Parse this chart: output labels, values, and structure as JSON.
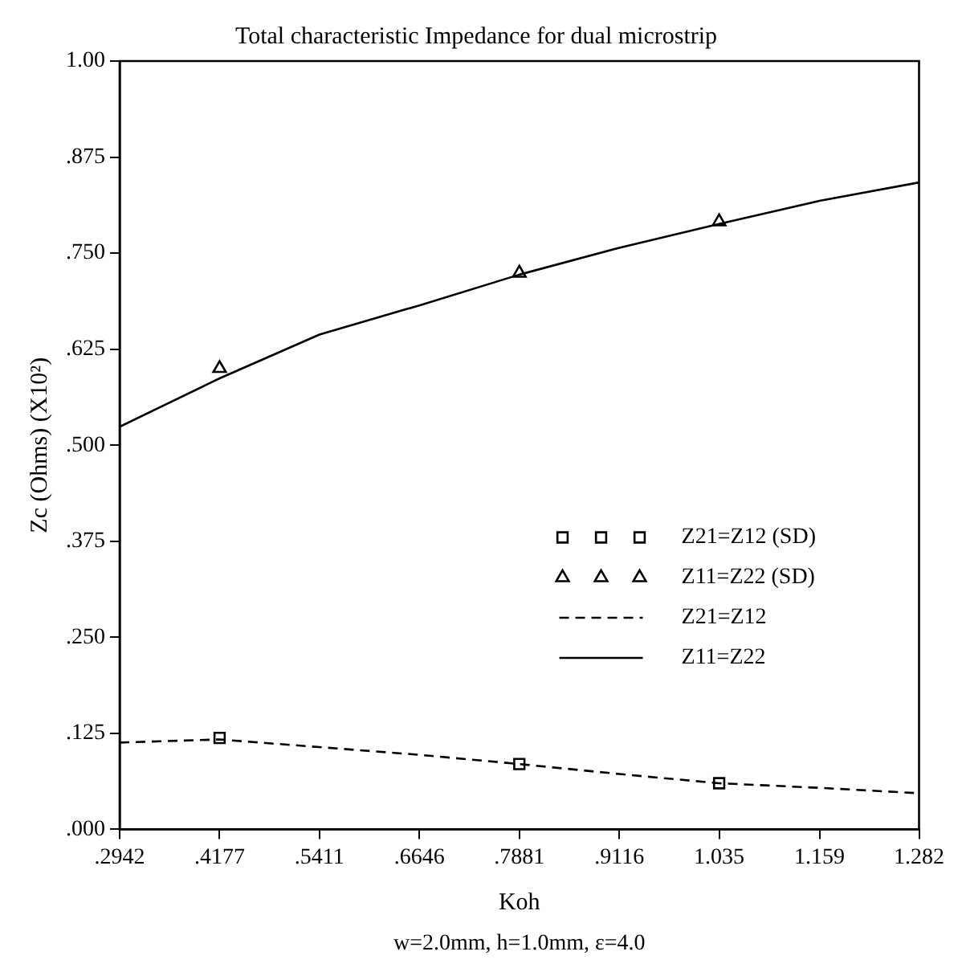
{
  "chart_data": {
    "type": "line",
    "title": "Total characteristic Impedance for dual microstrip",
    "xlabel": "Koh",
    "ylabel": "Zc (Ohms) (X10²)",
    "annotations": [
      "w=2.0mm, h=1.0mm, ε=4.0"
    ],
    "xlim": [
      0.2942,
      1.282
    ],
    "xticks": [
      {
        "value": 0.2942,
        "label": ".2942"
      },
      {
        "value": 0.4177,
        "label": ".4177"
      },
      {
        "value": 0.5411,
        "label": ".5411"
      },
      {
        "value": 0.6646,
        "label": ".6646"
      },
      {
        "value": 0.7881,
        "label": ".7881"
      },
      {
        "value": 0.9116,
        "label": ".9116"
      },
      {
        "value": 1.035,
        "label": "1.035"
      },
      {
        "value": 1.159,
        "label": "1.159"
      },
      {
        "value": 1.282,
        "label": "1.282"
      }
    ],
    "ylim": [
      0,
      1
    ],
    "yticks": [
      {
        "value": 0,
        "label": ".000"
      },
      {
        "value": 0.125,
        "label": ".125"
      },
      {
        "value": 0.25,
        "label": ".250"
      },
      {
        "value": 0.375,
        "label": ".375"
      },
      {
        "value": 0.5,
        "label": ".500"
      },
      {
        "value": 0.625,
        "label": ".625"
      },
      {
        "value": 0.75,
        "label": ".750"
      },
      {
        "value": 0.875,
        "label": ".875"
      },
      {
        "value": 1,
        "label": "1.00"
      }
    ],
    "grid": false,
    "legend": "right",
    "series": [
      {
        "name": "Z21=Z12 (SD)",
        "type": "scatter",
        "marker": "square",
        "color": "#000000",
        "x": [
          0.4177,
          0.7881,
          1.035
        ],
        "values": [
          0.119,
          0.085,
          0.06
        ]
      },
      {
        "name": "Z11=Z22 (SD)",
        "type": "scatter",
        "marker": "triangle",
        "color": "#000000",
        "x": [
          0.4177,
          0.7881,
          1.035
        ],
        "values": [
          0.6,
          0.724,
          0.791
        ]
      },
      {
        "name": "Z21=Z12",
        "type": "line",
        "line_style": "dashed",
        "color": "#000000",
        "x": [
          0.2942,
          0.4177,
          0.5411,
          0.6646,
          0.7881,
          0.9116,
          1.035,
          1.159,
          1.282
        ],
        "values": [
          0.113,
          0.117,
          0.107,
          0.097,
          0.085,
          0.072,
          0.06,
          0.054,
          0.047
        ]
      },
      {
        "name": "Z11=Z22",
        "type": "line",
        "line_style": "solid",
        "color": "#000000",
        "x": [
          0.2942,
          0.4177,
          0.5411,
          0.6646,
          0.7881,
          0.9116,
          1.035,
          1.159,
          1.282
        ],
        "values": [
          0.524,
          0.587,
          0.644,
          0.682,
          0.722,
          0.757,
          0.788,
          0.818,
          0.842
        ]
      }
    ]
  }
}
